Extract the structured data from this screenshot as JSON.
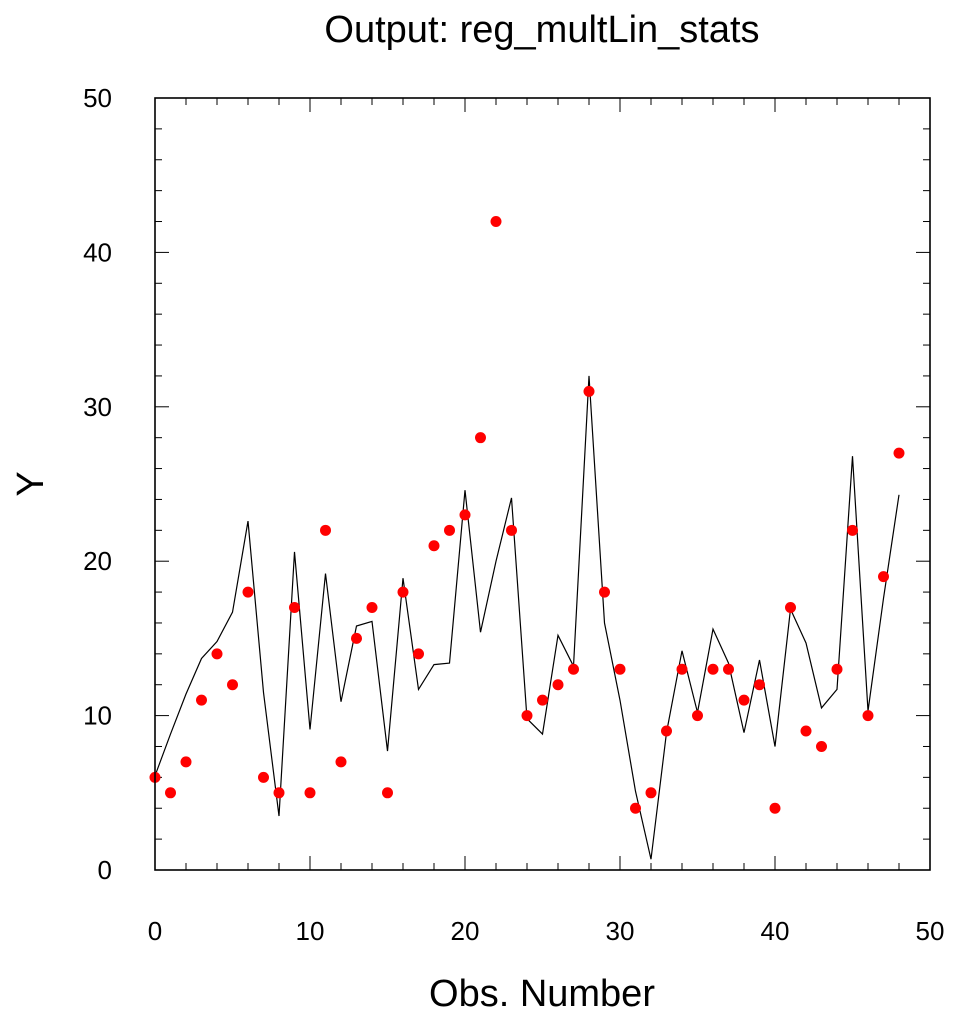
{
  "chart_data": {
    "type": "scatter",
    "title": "Output: reg_multLin_stats",
    "xlabel": "Obs. Number",
    "ylabel": "Y",
    "xlim": [
      0,
      50
    ],
    "ylim": [
      0,
      50
    ],
    "xticks": [
      0,
      10,
      20,
      30,
      40,
      50
    ],
    "yticks": [
      0,
      10,
      20,
      30,
      40,
      50
    ],
    "xtick_labels": [
      "0",
      "10",
      "20",
      "30",
      "40",
      "50"
    ],
    "ytick_labels": [
      "0",
      "10",
      "20",
      "30",
      "40",
      "50"
    ],
    "grid": false,
    "series": [
      {
        "kind": "markers",
        "color": "#ff0000",
        "x": [
          0,
          1,
          2,
          3,
          4,
          5,
          6,
          7,
          8,
          9,
          10,
          11,
          12,
          13,
          14,
          15,
          16,
          17,
          18,
          19,
          20,
          21,
          22,
          23,
          24,
          25,
          26,
          27,
          28,
          29,
          30,
          31,
          32,
          33,
          34,
          35,
          36,
          37,
          38,
          39,
          40,
          41,
          42,
          43,
          44,
          45,
          46,
          47,
          48
        ],
        "y": [
          6,
          5,
          7,
          11,
          14,
          12,
          18,
          6,
          5,
          17,
          5,
          22,
          7,
          15,
          17,
          5,
          18,
          14,
          21,
          22,
          23,
          28,
          42,
          22,
          10,
          11,
          12,
          13,
          31,
          18,
          13,
          4,
          5,
          9,
          13,
          10,
          13,
          13,
          11,
          12,
          4,
          17,
          9,
          8,
          13,
          22,
          10,
          19,
          27
        ]
      },
      {
        "kind": "line",
        "color": "#000000",
        "x": [
          0,
          1,
          2,
          3,
          4,
          5,
          6,
          7,
          8,
          9,
          10,
          11,
          12,
          13,
          14,
          15,
          16,
          17,
          18,
          19,
          20,
          21,
          22,
          23,
          24,
          25,
          26,
          27,
          28,
          29,
          30,
          31,
          32,
          33,
          34,
          35,
          36,
          37,
          38,
          39,
          40,
          41,
          42,
          43,
          44,
          45,
          46,
          47,
          48
        ],
        "y": [
          6.1,
          8.8,
          11.4,
          13.7,
          14.8,
          16.7,
          22.6,
          11.5,
          3.5,
          20.6,
          9.1,
          19.2,
          10.9,
          15.8,
          16.1,
          7.7,
          18.9,
          11.7,
          13.3,
          13.4,
          24.6,
          15.4,
          20.0,
          24.1,
          9.8,
          8.8,
          15.2,
          13.2,
          32.0,
          16.0,
          11.0,
          5.1,
          0.7,
          8.9,
          14.2,
          10.2,
          15.6,
          13.4,
          8.9,
          13.6,
          8.0,
          16.9,
          14.7,
          10.5,
          11.7,
          26.8,
          10.3,
          17.6,
          24.3
        ]
      }
    ]
  }
}
